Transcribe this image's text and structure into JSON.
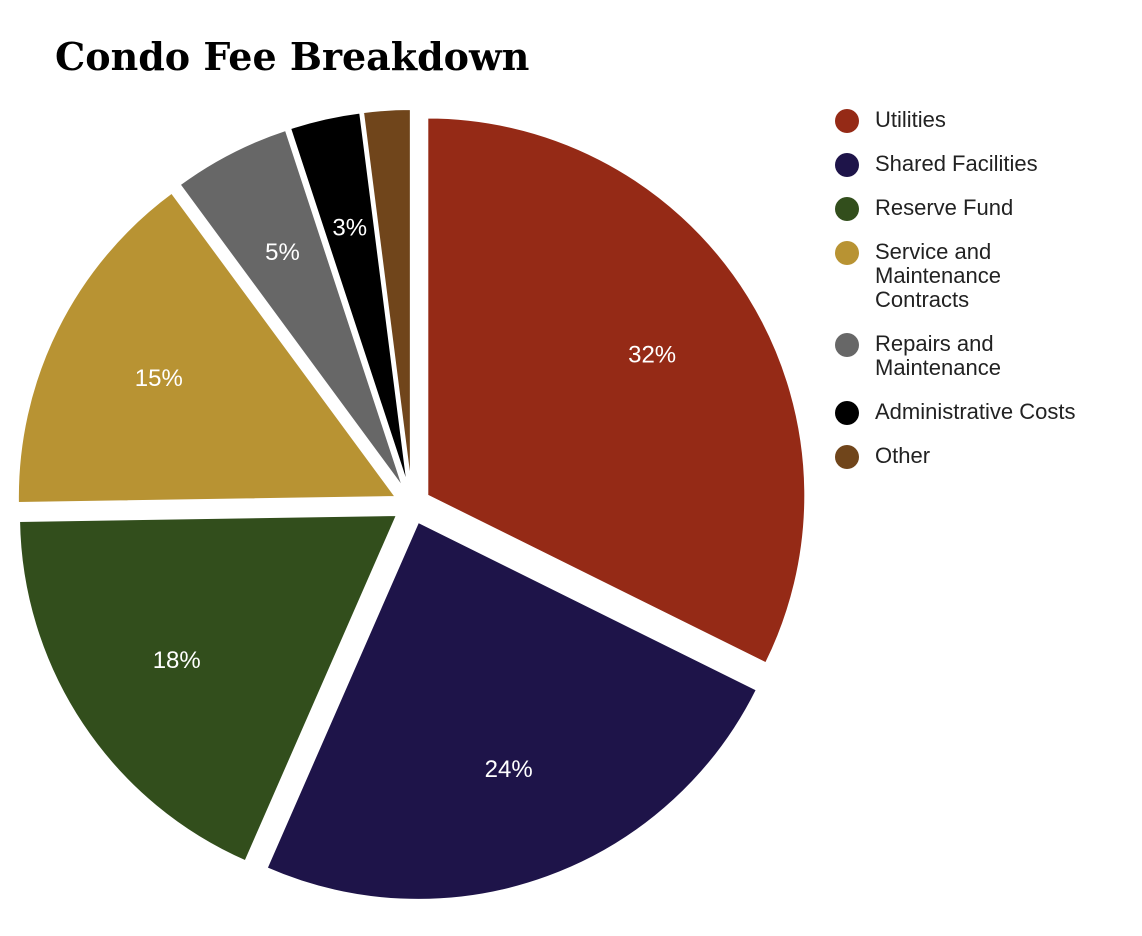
{
  "chart_data": {
    "type": "pie",
    "title": "Condo Fee Breakdown",
    "categories": [
      "Utilities",
      "Shared Facilities",
      "Reserve Fund",
      "Service and Maintenance Contracts",
      "Repairs and Maintenance",
      "Administrative Costs",
      "Other"
    ],
    "values": [
      32,
      24,
      18,
      15,
      5,
      3,
      2
    ],
    "data_labels": [
      "32%",
      "24%",
      "18%",
      "15%",
      "5%",
      "3%",
      ""
    ],
    "colors": [
      "#952a16",
      "#1e1449",
      "#324e1c",
      "#b89333",
      "#676767",
      "#000000",
      "#70451b"
    ],
    "legend": {
      "placement": "right",
      "lines": [
        [
          "Utilities"
        ],
        [
          "Shared Facilities"
        ],
        [
          "Reserve Fund"
        ],
        [
          "Service and",
          "Maintenance",
          "Contracts"
        ],
        [
          "Repairs and",
          "Maintenance"
        ],
        [
          "Administrative Costs"
        ],
        [
          "Other"
        ]
      ]
    }
  }
}
